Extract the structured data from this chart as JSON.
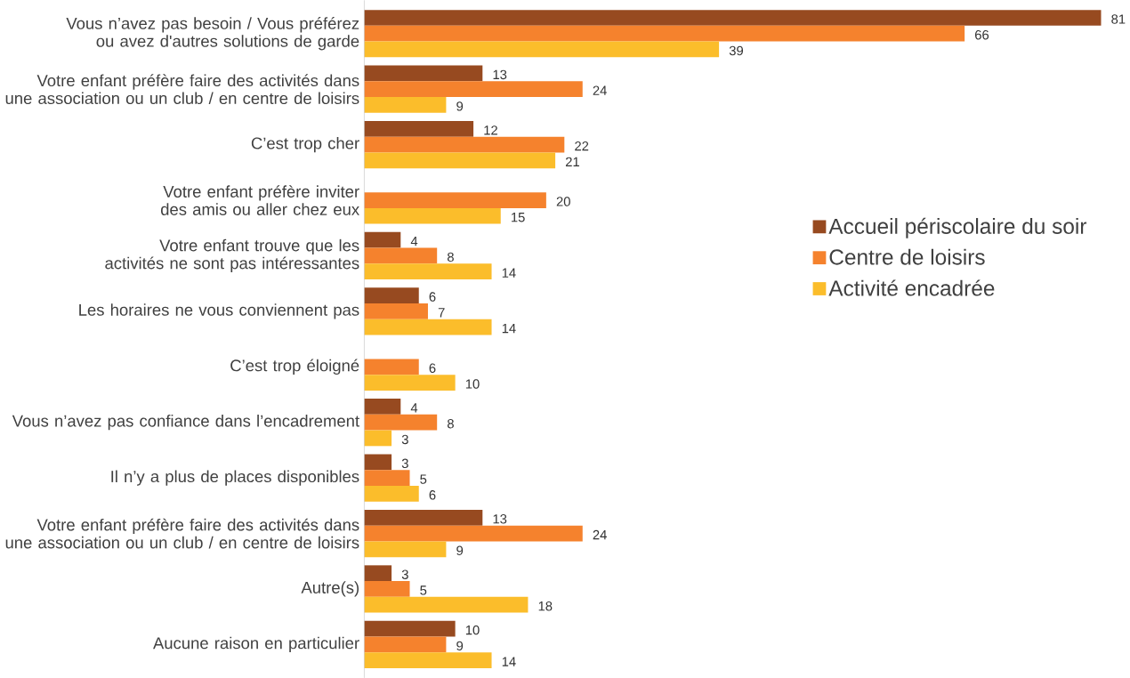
{
  "chart_data": {
    "type": "bar",
    "orientation": "horizontal",
    "categories": [
      "Vous n’avez pas besoin / Vous préférez ou avez d'autres solutions de garde",
      "Votre enfant préfère faire des activités dans une association ou un club / en centre de loisirs",
      "C’est trop cher",
      "Votre enfant préfère inviter des amis ou aller chez eux",
      "Votre enfant trouve que les activités ne sont pas intéressantes",
      "Les horaires ne vous conviennent pas",
      "C’est trop éloigné",
      "Vous n’avez pas confiance dans l’encadrement",
      "Il n’y a plus de places disponibles",
      "Votre enfant préfère faire des activités dans une association ou un club / en centre de loisirs",
      "Autre(s)",
      "Aucune raison en particulier"
    ],
    "series": [
      {
        "name": "Accueil périscolaire du soir",
        "color": "#974a20",
        "values": [
          81,
          13,
          12,
          null,
          4,
          6,
          null,
          4,
          3,
          13,
          3,
          10
        ]
      },
      {
        "name": "Centre de loisirs",
        "color": "#f5822d",
        "values": [
          66,
          24,
          22,
          20,
          8,
          7,
          6,
          8,
          5,
          24,
          5,
          9
        ]
      },
      {
        "name": "Activité encadrée",
        "color": "#fbbd2b",
        "values": [
          39,
          9,
          21,
          15,
          14,
          14,
          10,
          3,
          6,
          9,
          18,
          14
        ]
      }
    ],
    "tick_labels": "y",
    "data_labels": true,
    "legend": "right",
    "grid": false
  }
}
